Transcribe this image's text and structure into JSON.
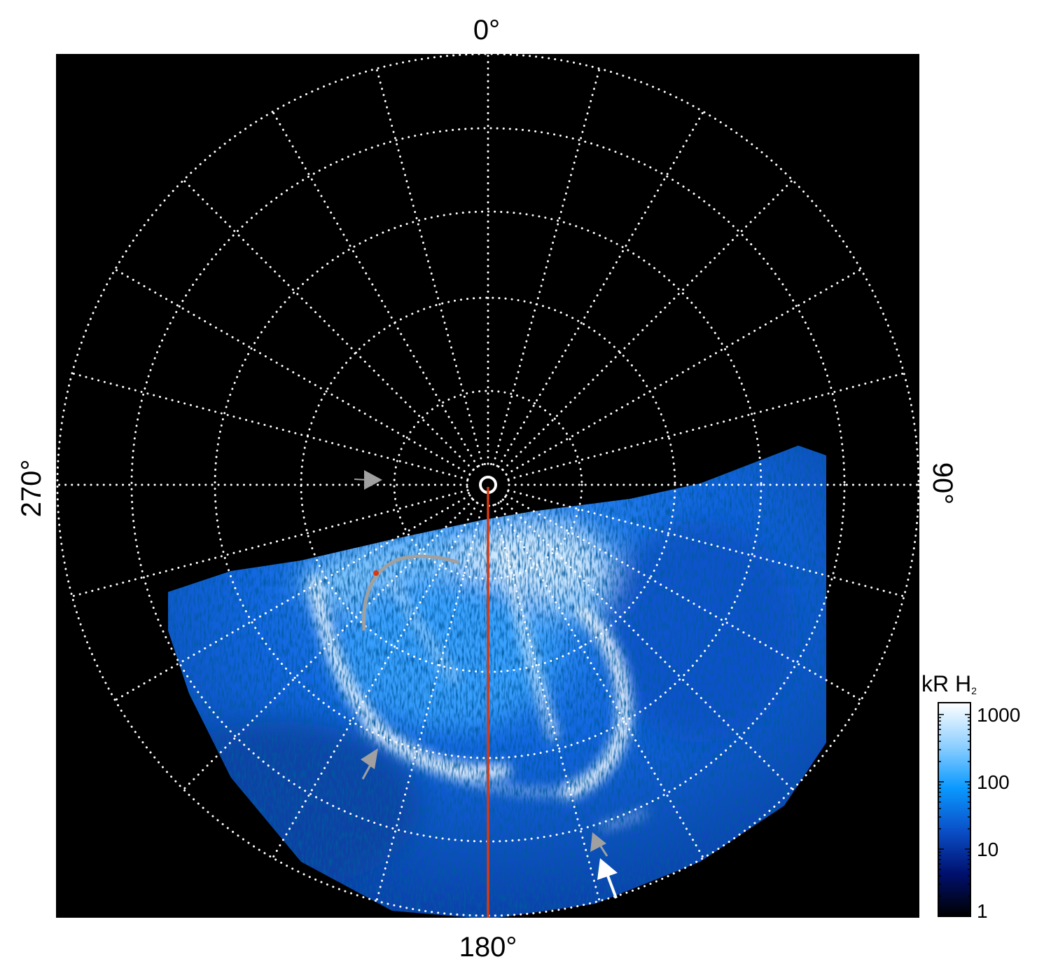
{
  "chart_data": {
    "type": "heatmap",
    "projection": "polar",
    "title": "",
    "grid": true,
    "longitude_labels": {
      "top": "0°",
      "right": "90°",
      "bottom": "180°",
      "left": "270°"
    },
    "longitude_grid_step_deg": 15,
    "latitude_circles": 5,
    "colorbar": {
      "label": "kR H",
      "label_subscript": "2",
      "scale": "log",
      "range": [
        1,
        1500
      ],
      "ticks": [
        1,
        10,
        100,
        1000
      ],
      "tick_labels": [
        "1",
        "10",
        "100",
        "1000"
      ],
      "colormap": [
        "#000000",
        "#00106e",
        "#0a4fc8",
        "#0a99ff",
        "#8fd0ff",
        "#ffffff"
      ]
    },
    "annotations": [
      {
        "type": "arrow",
        "color": "#a0a0a0",
        "direction": "right"
      },
      {
        "type": "arrow",
        "color": "#a0a0a0",
        "direction": "up-right"
      },
      {
        "type": "arrow",
        "color": "#a0a0a0",
        "direction": "up-left"
      },
      {
        "type": "arrow",
        "color": "#ffffff",
        "direction": "up-left"
      },
      {
        "type": "curve",
        "color": "#a0a0a0"
      },
      {
        "type": "line",
        "color": "#d63a10",
        "longitude": 180
      }
    ]
  }
}
